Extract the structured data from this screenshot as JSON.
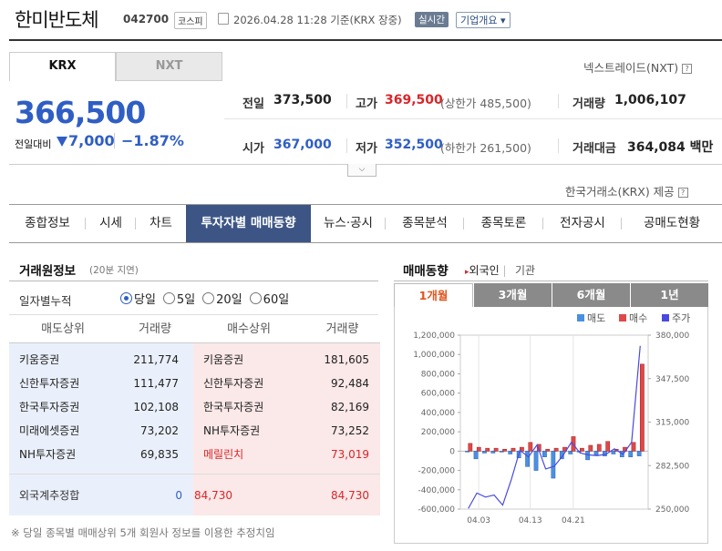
{
  "header": {
    "name": "한미반도체",
    "code": "042700",
    "market": "코스피",
    "datetime": "2026.04.28 11:28 기준(KRX 장중)",
    "live": "실시간",
    "overview": "기업개요 ▾"
  },
  "exchange_tabs": {
    "krx": "KRX",
    "nxt": "NXT"
  },
  "nxt_link": "넥스트레이드(NXT)",
  "price": {
    "current": "366,500",
    "change_label": "전일대비",
    "change": "7,000",
    "change_pct": "−1.87%"
  },
  "quote": {
    "prev_label": "전일",
    "prev": "373,500",
    "high_label": "고가",
    "high": "369,500",
    "upper_limit": "(상한가 485,500)",
    "volume_label": "거래량",
    "volume": "1,006,107",
    "open_label": "시가",
    "open": "367,000",
    "low_label": "저가",
    "low": "352,500",
    "lower_limit": "(하한가 261,500)",
    "amount_label": "거래대금",
    "amount": "364,084 백만"
  },
  "krx_provided": "한국거래소(KRX) 제공",
  "nav": [
    "종합정보",
    "시세",
    "차트",
    "투자자별 매매동향",
    "뉴스·공시",
    "종목분석",
    "종목토론",
    "전자공시",
    "공매도현황"
  ],
  "left": {
    "title": "거래원정보",
    "subtitle": "(20분 지연)",
    "period_label": "일자별누적",
    "periods": [
      "당일",
      "5일",
      "20일",
      "60일"
    ],
    "headers": [
      "매도상위",
      "거래량",
      "매수상위",
      "거래량"
    ],
    "sell": [
      {
        "name": "키움증권",
        "vol": "211,774"
      },
      {
        "name": "신한투자증권",
        "vol": "111,477"
      },
      {
        "name": "한국투자증권",
        "vol": "102,108"
      },
      {
        "name": "미래에셋증권",
        "vol": "73,202"
      },
      {
        "name": "NH투자증권",
        "vol": "69,835"
      }
    ],
    "buy": [
      {
        "name": "키움증권",
        "vol": "181,605"
      },
      {
        "name": "신한투자증권",
        "vol": "92,484"
      },
      {
        "name": "한국투자증권",
        "vol": "82,169"
      },
      {
        "name": "NH투자증권",
        "vol": "73,252"
      },
      {
        "name": "메릴린치",
        "vol": "73,019"
      }
    ],
    "foreign_label": "외국계추정합",
    "foreign_sell": "0",
    "foreign_diff": "84,730",
    "foreign_buy": "84,730",
    "note": "※ 당일 종목별 매매상위 5개 회원사 정보를 이용한 추정치임"
  },
  "right": {
    "title": "매매동향",
    "foreign": "외국인",
    "inst": "기관",
    "tabs": [
      "1개월",
      "3개월",
      "6개월",
      "1년"
    ]
  },
  "colors": {
    "sell": "#4a90e2",
    "buy": "#e04848",
    "price": "#4a4ae0"
  },
  "chart_data": {
    "type": "bar",
    "legend": [
      "매도",
      "매수",
      "주가"
    ],
    "y_left_ticks": [
      "1,200,000",
      "1,000,000",
      "800,000",
      "600,000",
      "400,000",
      "200,000",
      "0",
      "-200,000",
      "-400,000",
      "-600,000"
    ],
    "y_right_ticks": [
      "380,000",
      "347,500",
      "315,000",
      "282,500",
      "250,000"
    ],
    "x_ticks": [
      "04.03",
      "04.13",
      "04.21"
    ],
    "ylim_left": [
      -600000,
      1200000
    ],
    "ylim_right": [
      250000,
      380000
    ],
    "series": [
      {
        "name": "매도",
        "values": [
          0,
          -80000,
          -20000,
          -20000,
          -10000,
          -30000,
          -70000,
          -160000,
          -200000,
          -60000,
          -280000,
          -80000,
          -30000,
          -10000,
          -90000,
          -40000,
          -50000,
          -30000,
          -60000,
          -60000,
          -50000
        ]
      },
      {
        "name": "매수",
        "values": [
          80000,
          40000,
          30000,
          30000,
          20000,
          30000,
          40000,
          90000,
          70000,
          20000,
          30000,
          40000,
          150000,
          30000,
          60000,
          70000,
          100000,
          20000,
          40000,
          90000,
          900000
        ]
      },
      {
        "name": "주가",
        "values": [
          250500,
          262000,
          259000,
          260500,
          253000,
          272000,
          294000,
          289000,
          298000,
          280000,
          282000,
          290000,
          300000,
          292000,
          290500,
          290000,
          291000,
          295000,
          291000,
          300000,
          372000
        ]
      }
    ]
  }
}
